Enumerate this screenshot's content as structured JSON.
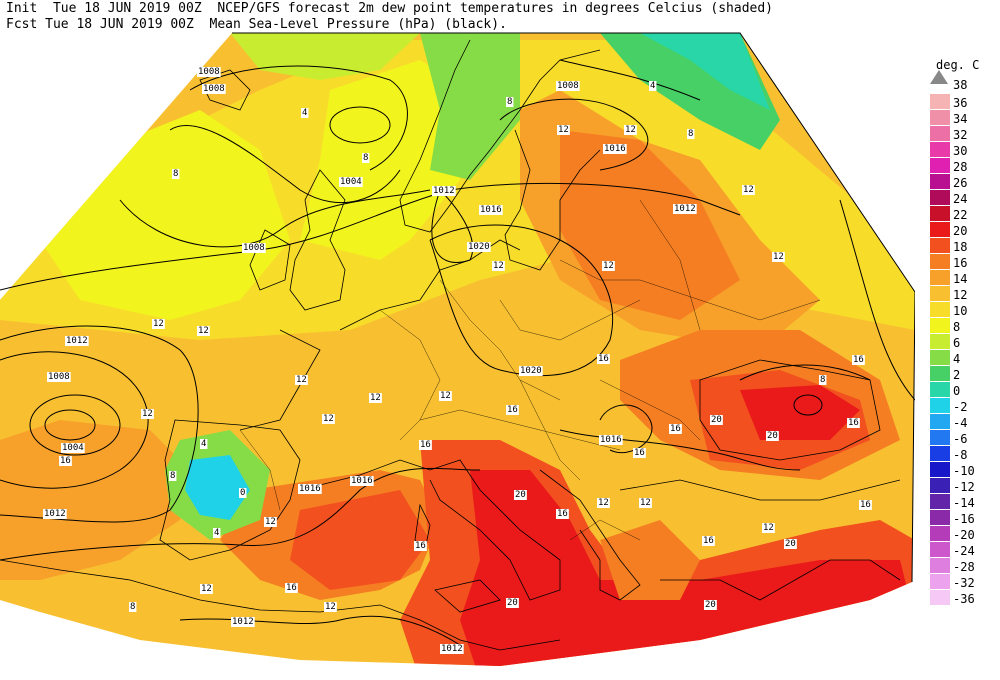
{
  "header": {
    "line1": "Init  Tue 18 JUN 2019 00Z  NCEP/GFS forecast 2m dew point temperatures in degrees Celcius (shaded)",
    "line2": "Fcst Tue 18 JUN 2019 00Z  Mean Sea-Level Pressure (hPa) (black)."
  },
  "legend": {
    "unit": "deg. C",
    "top_value": "38",
    "levels": [
      {
        "label": "36",
        "color": "#f5b3b3"
      },
      {
        "label": "34",
        "color": "#f08fa8"
      },
      {
        "label": "32",
        "color": "#ec6fa5"
      },
      {
        "label": "30",
        "color": "#e83aa8"
      },
      {
        "label": "28",
        "color": "#e020b0"
      },
      {
        "label": "26",
        "color": "#b81090"
      },
      {
        "label": "24",
        "color": "#b00a5a"
      },
      {
        "label": "22",
        "color": "#c8102a"
      },
      {
        "label": "20",
        "color": "#ea1a1a"
      },
      {
        "label": "18",
        "color": "#f2501e"
      },
      {
        "label": "16",
        "color": "#f57e22"
      },
      {
        "label": "14",
        "color": "#f7a12a"
      },
      {
        "label": "12",
        "color": "#f8c030"
      },
      {
        "label": "10",
        "color": "#f8dc2a"
      },
      {
        "label": "8",
        "color": "#f2f41e"
      },
      {
        "label": "6",
        "color": "#c8ec30"
      },
      {
        "label": "4",
        "color": "#86dc46"
      },
      {
        "label": "2",
        "color": "#46d065"
      },
      {
        "label": "0",
        "color": "#28d6a8"
      },
      {
        "label": "-2",
        "color": "#20d2e8"
      },
      {
        "label": "-4",
        "color": "#22a8f0"
      },
      {
        "label": "-6",
        "color": "#2278f0"
      },
      {
        "label": "-8",
        "color": "#1a3ee6"
      },
      {
        "label": "-10",
        "color": "#1818c8"
      },
      {
        "label": "-12",
        "color": "#3a20b4"
      },
      {
        "label": "-14",
        "color": "#6224a8"
      },
      {
        "label": "-16",
        "color": "#8a2aa8"
      },
      {
        "label": "-20",
        "color": "#b43cb8"
      },
      {
        "label": "-24",
        "color": "#cc58cc"
      },
      {
        "label": "-28",
        "color": "#de7ede"
      },
      {
        "label": "-32",
        "color": "#eca2ec"
      },
      {
        "label": "-36",
        "color": "#f6c8f6"
      }
    ]
  },
  "map": {
    "pressure_labels": [
      "1008",
      "1008",
      "1008",
      "1004",
      "1012",
      "1016",
      "1020",
      "1008",
      "1012",
      "1012",
      "1008",
      "1004",
      "1016",
      "1020",
      "1016",
      "1012",
      "1016",
      "1016",
      "1012",
      "1012"
    ],
    "dewpoint_labels": [
      "4",
      "8",
      "4",
      "8",
      "12",
      "12",
      "8",
      "8",
      "12",
      "12",
      "12",
      "12",
      "16",
      "12",
      "12",
      "12",
      "4",
      "12",
      "16",
      "8",
      "12",
      "16",
      "20",
      "16",
      "12",
      "16",
      "16",
      "12",
      "20",
      "12",
      "20",
      "16",
      "16",
      "16",
      "20",
      "16",
      "0",
      "4",
      "8",
      "12",
      "12",
      "12",
      "16",
      "12",
      "8",
      "16",
      "20",
      "20",
      "12",
      "16"
    ]
  },
  "colors": {
    "sea_border": "#000000",
    "background": "#ffffff"
  }
}
